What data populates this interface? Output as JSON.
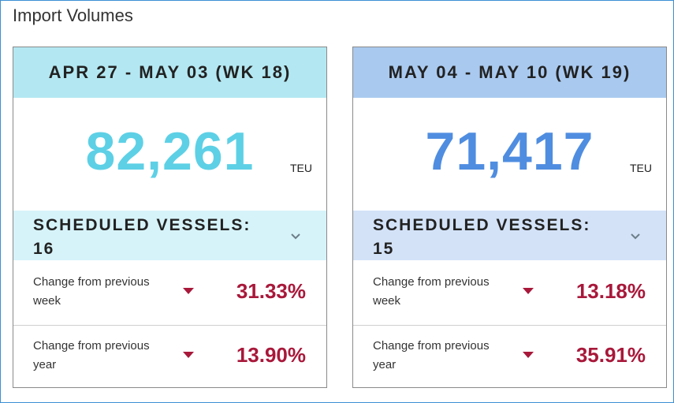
{
  "page": {
    "title": "Import Volumes"
  },
  "colors": {
    "frame_border": "#3b8fd6",
    "card1_header": "#b3e8f2",
    "card2_header": "#a9c9ef",
    "card1_value": "#5dd0e6",
    "card2_value": "#4f8de0",
    "decrease": "#a8183a"
  },
  "cards": [
    {
      "header": "APR 27 - MAY 03 (WK 18)",
      "value": "82,261",
      "unit": "TEU",
      "vessels_label": "SCHEDULED VESSELS:",
      "vessels_count": "16",
      "expand_icon": "chevron-down-icon",
      "changes": [
        {
          "label": "Change from previous week",
          "direction": "down",
          "value": "31.33%"
        },
        {
          "label": "Change from previous year",
          "direction": "down",
          "value": "13.90%"
        }
      ]
    },
    {
      "header": "MAY 04 - MAY 10 (WK 19)",
      "value": "71,417",
      "unit": "TEU",
      "vessels_label": "SCHEDULED VESSELS:",
      "vessels_count": "15",
      "expand_icon": "chevron-down-icon",
      "changes": [
        {
          "label": "Change from previous week",
          "direction": "down",
          "value": "13.18%"
        },
        {
          "label": "Change from previous year",
          "direction": "down",
          "value": "35.91%"
        }
      ]
    }
  ]
}
